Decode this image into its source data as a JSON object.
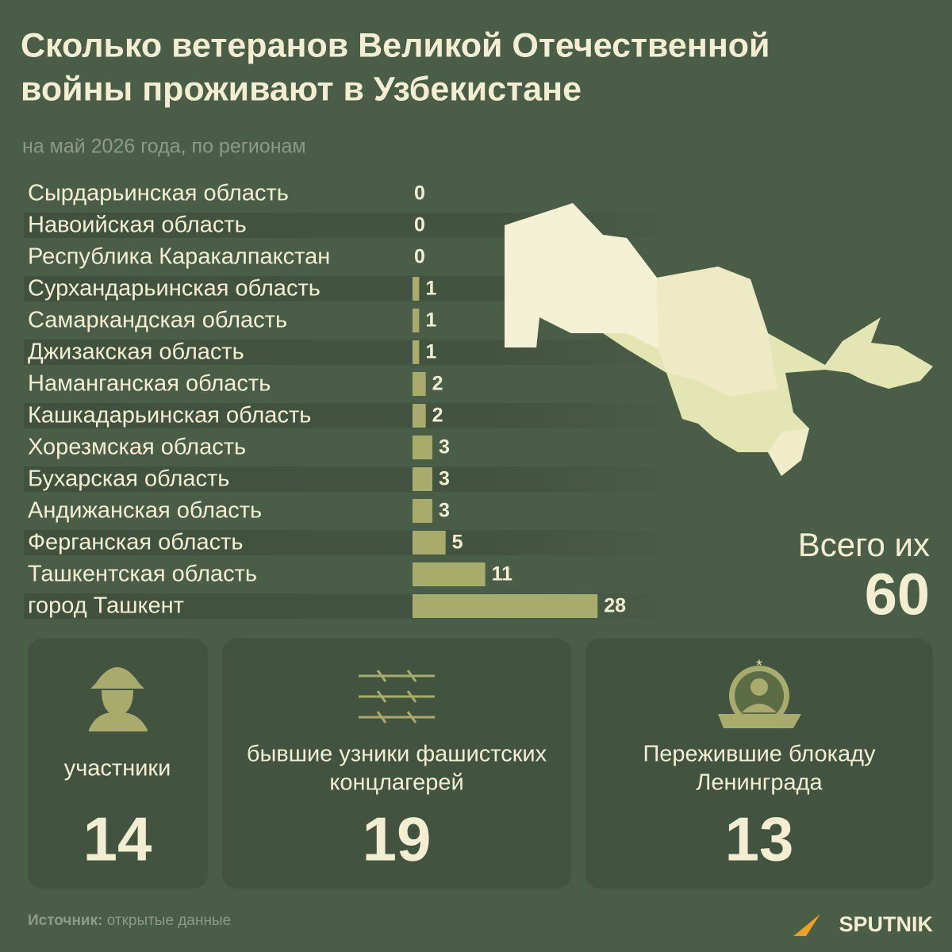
{
  "chart_data": {
    "type": "bar",
    "orientation": "horizontal",
    "title": [
      "Сколько ветеранов Великой Отечественной",
      "войны проживают в Узбекистане"
    ],
    "subtitle": "на май 2026 года, по регионам",
    "categories": [
      "Сырдарьинская область",
      "Навоийская область",
      "Республика Каракалпакстан",
      "Сурхандарьинская область",
      "Самаркандская область",
      "Джизакская область",
      "Наманганская область",
      "Кашкадарьинская область",
      "Хорезмская область",
      "Бухарская область",
      "Андижанская область",
      "Ферганская область",
      "Ташкентская область",
      "город Ташкент"
    ],
    "values": [
      0,
      0,
      0,
      1,
      1,
      1,
      2,
      2,
      3,
      3,
      3,
      5,
      11,
      28
    ],
    "color": "#a8ab6b"
  },
  "total": {
    "label": "Всего их",
    "value": 60
  },
  "cards": [
    {
      "label": [
        "участники"
      ],
      "value": 14
    },
    {
      "label": [
        "бывшие узники фашистских",
        "концлагерей"
      ],
      "value": 19
    },
    {
      "label": [
        "Пережившие блокаду",
        "Ленинграда"
      ],
      "value": 13
    }
  ],
  "source": {
    "label": "Источник:",
    "text": "открытые данные"
  },
  "brand": "SPUTNIK"
}
